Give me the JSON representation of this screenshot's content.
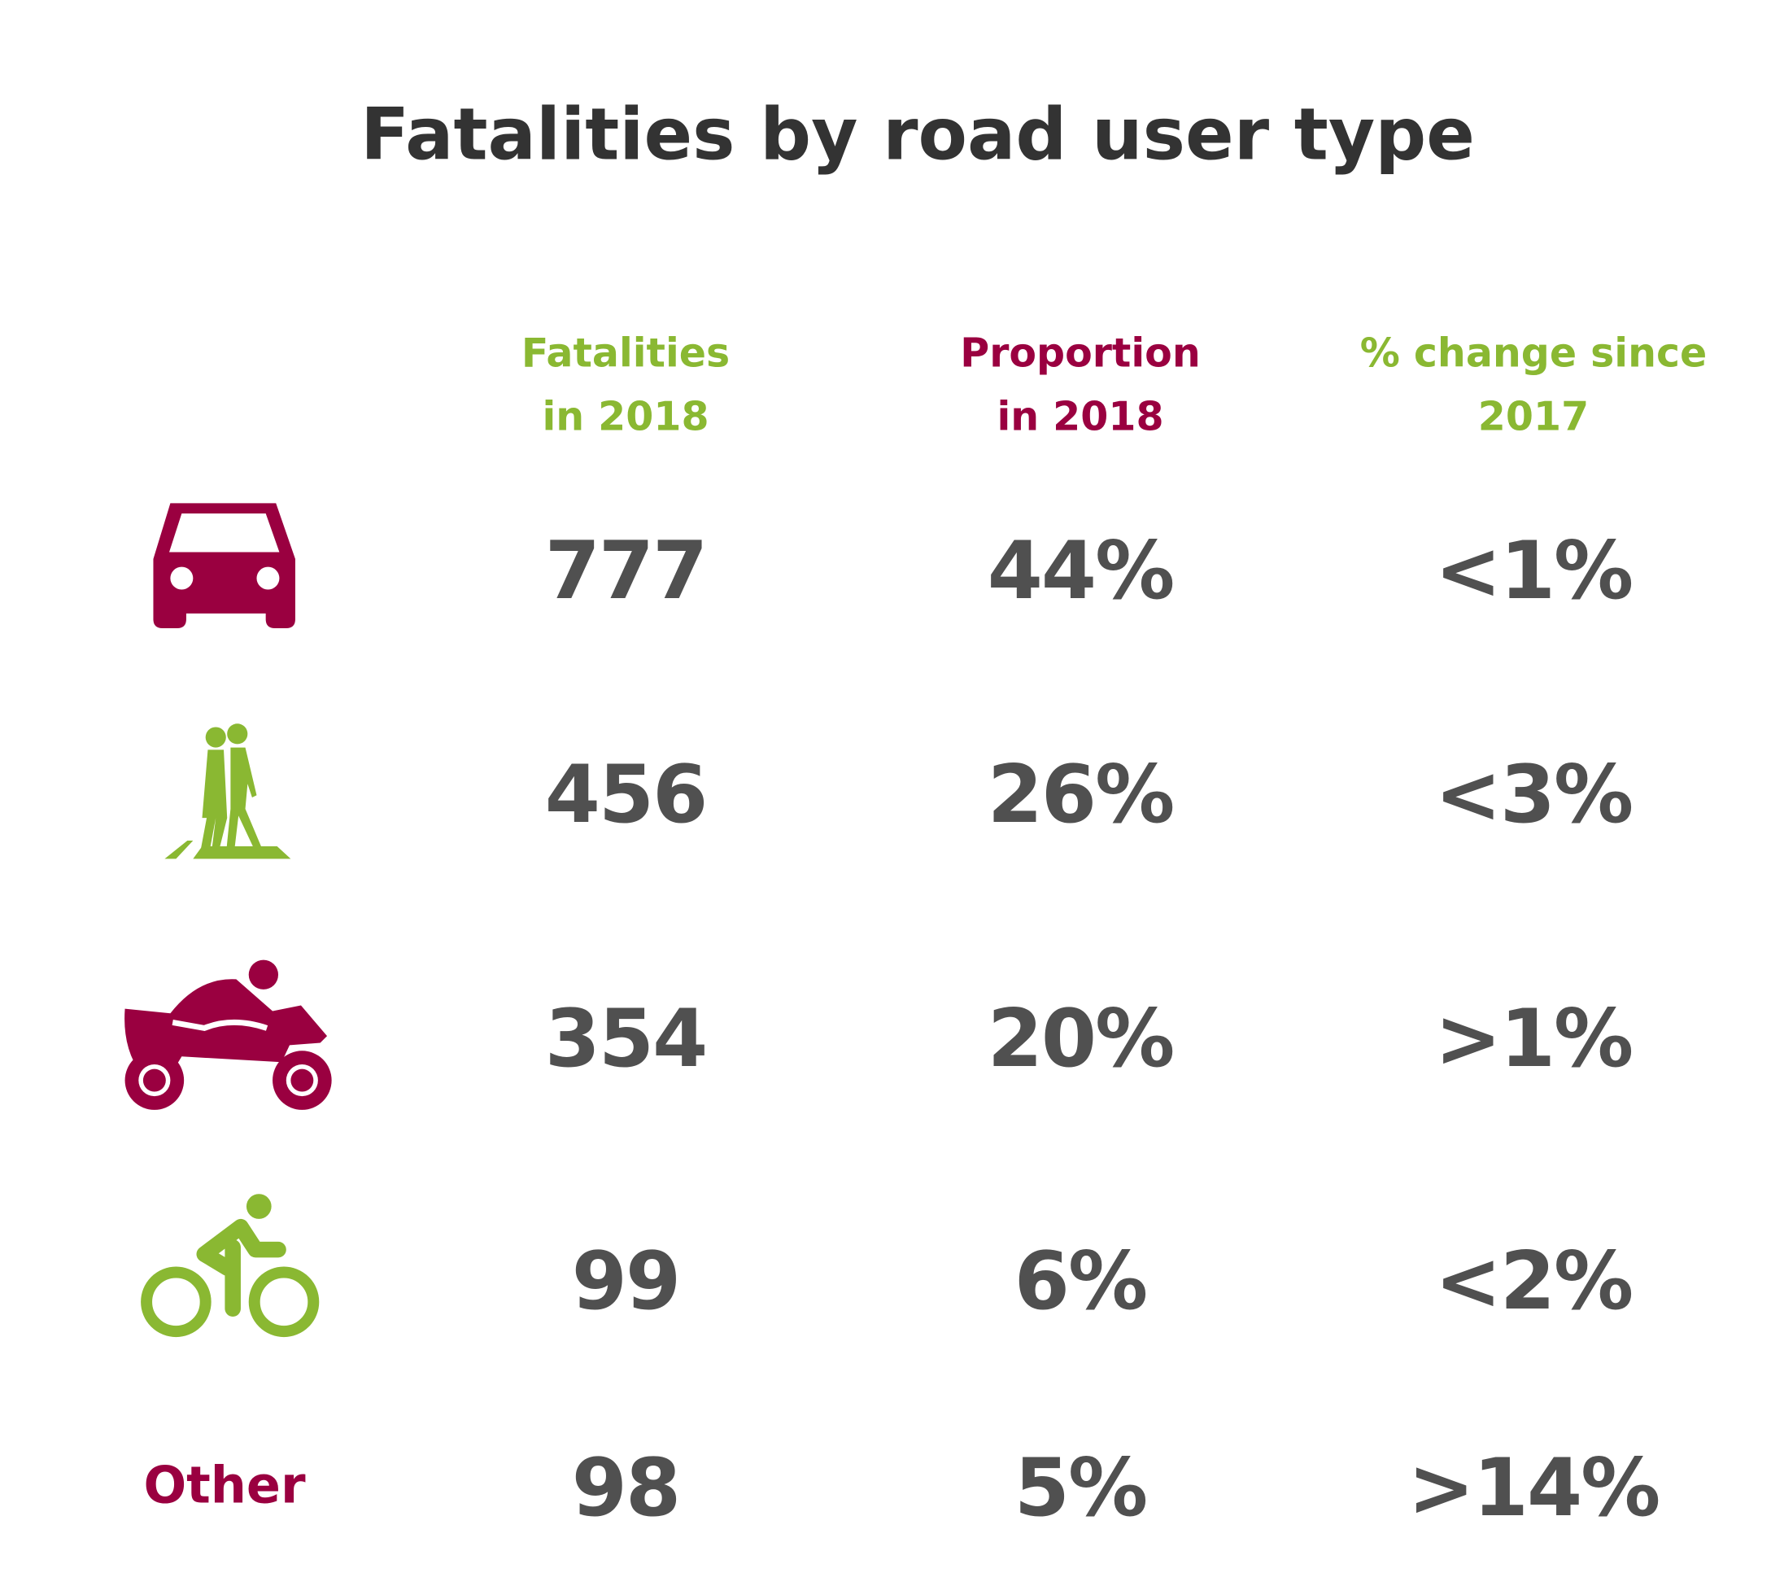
{
  "header": {
    "title": "Fatalities by road user type"
  },
  "table": {
    "columns": [
      {
        "lines": [
          "Fatalities",
          "in 2018"
        ],
        "color": "#8ab832"
      },
      {
        "lines": [
          "Proportion",
          "in 2018"
        ],
        "color": "#9a0040"
      },
      {
        "lines": [
          "% change since",
          "2017"
        ],
        "color": "#8ab832"
      }
    ],
    "rows": [
      {
        "values": [
          "777",
          "44%",
          "<1%"
        ]
      },
      {
        "values": [
          "456",
          "26%",
          "<3%"
        ]
      },
      {
        "values": [
          "354",
          "20%",
          ">1%"
        ]
      },
      {
        "values": [
          "99",
          "6%",
          "<2%"
        ]
      },
      {
        "label": "Other",
        "values": [
          "98",
          "5%",
          ">14%"
        ]
      }
    ]
  }
}
